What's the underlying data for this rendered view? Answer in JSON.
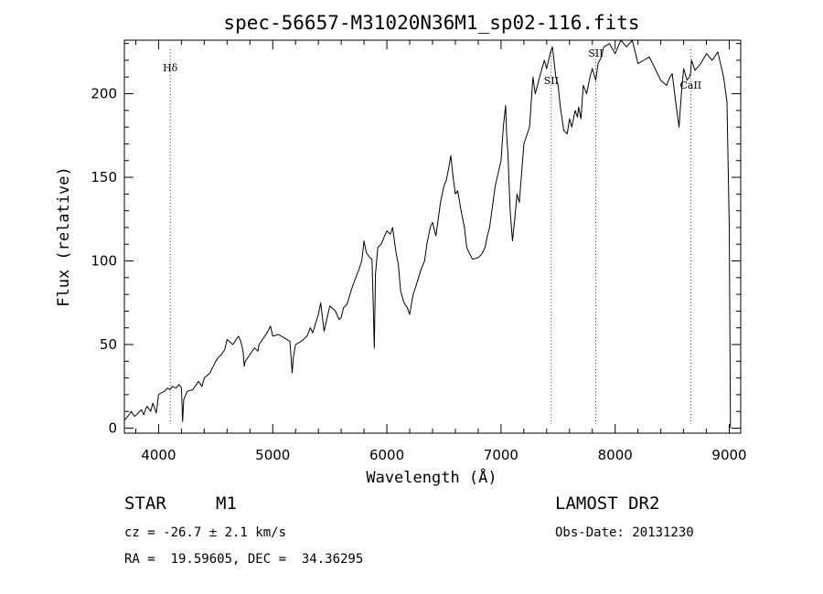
{
  "chart_data": {
    "type": "line",
    "title": "spec-56657-M31020N36M1_sp02-116.fits",
    "xlabel": "Wavelength (Å)",
    "ylabel": "Flux (relative)",
    "xlim": [
      3700,
      9100
    ],
    "ylim": [
      -3,
      232
    ],
    "xticks": [
      4000,
      5000,
      6000,
      7000,
      8000,
      9000
    ],
    "yticks": [
      0,
      50,
      100,
      150,
      200
    ],
    "grid": false,
    "legend": "none",
    "line_markers": [
      {
        "label": "Hδ",
        "x": 4102
      },
      {
        "label": "SII",
        "x": 7440
      },
      {
        "label": "SII",
        "x": 7830
      },
      {
        "label": "CaII",
        "x": 8662
      }
    ],
    "series": [
      {
        "values_x": [
          3705,
          3740,
          3760,
          3790,
          3820,
          3850,
          3870,
          3890,
          3900,
          3930,
          3950,
          3980,
          4000,
          4020,
          4050,
          4080,
          4100,
          4120,
          4150,
          4180,
          4200,
          4210,
          4220,
          4250,
          4300,
          4350,
          4380,
          4400,
          4450,
          4500,
          4520,
          4550,
          4580,
          4600,
          4650,
          4700,
          4720,
          4740,
          4750,
          4760,
          4800,
          4840,
          4870,
          4880,
          4900,
          4950,
          4980,
          5000,
          5050,
          5100,
          5150,
          5170,
          5180,
          5200,
          5250,
          5300,
          5330,
          5350,
          5400,
          5420,
          5450,
          5500,
          5550,
          5580,
          5600,
          5620,
          5650,
          5700,
          5750,
          5780,
          5800,
          5820,
          5850,
          5870,
          5880,
          5890,
          5900,
          5920,
          5950,
          5980,
          6000,
          6030,
          6050,
          6080,
          6100,
          6120,
          6150,
          6180,
          6200,
          6230,
          6250,
          6300,
          6330,
          6350,
          6380,
          6400,
          6430,
          6450,
          6470,
          6500,
          6520,
          6540,
          6560,
          6580,
          6600,
          6620,
          6650,
          6680,
          6700,
          6720,
          6750,
          6800,
          6830,
          6860,
          6880,
          6900,
          6950,
          7000,
          7020,
          7040,
          7050,
          7060,
          7080,
          7100,
          7120,
          7140,
          7160,
          7200,
          7250,
          7280,
          7300,
          7320,
          7350,
          7380,
          7400,
          7430,
          7450,
          7480,
          7500,
          7520,
          7550,
          7580,
          7600,
          7620,
          7650,
          7670,
          7680,
          7700,
          7720,
          7750,
          7780,
          7800,
          7830,
          7850,
          7880,
          7900,
          7950,
          8000,
          8050,
          8100,
          8150,
          8200,
          8250,
          8300,
          8350,
          8400,
          8450,
          8480,
          8500,
          8530,
          8560,
          8580,
          8600,
          8630,
          8650,
          8660,
          8670,
          8700,
          8750,
          8800,
          8850,
          8900,
          8950,
          8980,
          9000,
          9010
        ],
        "values_y": [
          5,
          8,
          10,
          7,
          9,
          11,
          8,
          12,
          13,
          10,
          15,
          9,
          20,
          21,
          22,
          24,
          23,
          25,
          24,
          26,
          24,
          4,
          17,
          22,
          23,
          28,
          25,
          30,
          33,
          40,
          42,
          44,
          47,
          53,
          50,
          55,
          52,
          46,
          37,
          40,
          44,
          48,
          46,
          50,
          52,
          57,
          61,
          55,
          56,
          54,
          52,
          33,
          42,
          50,
          52,
          55,
          60,
          57,
          68,
          75,
          58,
          73,
          70,
          65,
          66,
          72,
          74,
          85,
          94,
          100,
          112,
          105,
          102,
          101,
          75,
          48,
          92,
          108,
          110,
          115,
          118,
          116,
          120,
          105,
          98,
          82,
          75,
          72,
          68,
          80,
          84,
          95,
          100,
          110,
          120,
          123,
          115,
          125,
          135,
          145,
          148,
          155,
          163,
          150,
          140,
          142,
          130,
          120,
          108,
          105,
          101,
          102,
          104,
          108,
          115,
          120,
          145,
          160,
          180,
          193,
          175,
          165,
          130,
          112,
          125,
          140,
          135,
          170,
          180,
          210,
          200,
          205,
          213,
          220,
          215,
          224,
          228,
          210,
          205,
          192,
          178,
          176,
          185,
          180,
          190,
          186,
          192,
          185,
          205,
          200,
          210,
          215,
          208,
          218,
          222,
          228,
          230,
          224,
          232,
          228,
          232,
          218,
          220,
          222,
          215,
          208,
          205,
          210,
          212,
          195,
          180,
          200,
          215,
          208,
          210,
          212,
          220,
          214,
          218,
          224,
          220,
          225,
          210,
          195,
          120,
          0
        ]
      }
    ]
  },
  "footer": {
    "object_type": "STAR",
    "subclass": "M1",
    "survey": "LAMOST DR2",
    "cz": "cz = -26.7 ± 2.1 km/s",
    "obs_date": "Obs-Date: 20131230",
    "coords": "RA =  19.59605, DEC =  34.36295"
  }
}
